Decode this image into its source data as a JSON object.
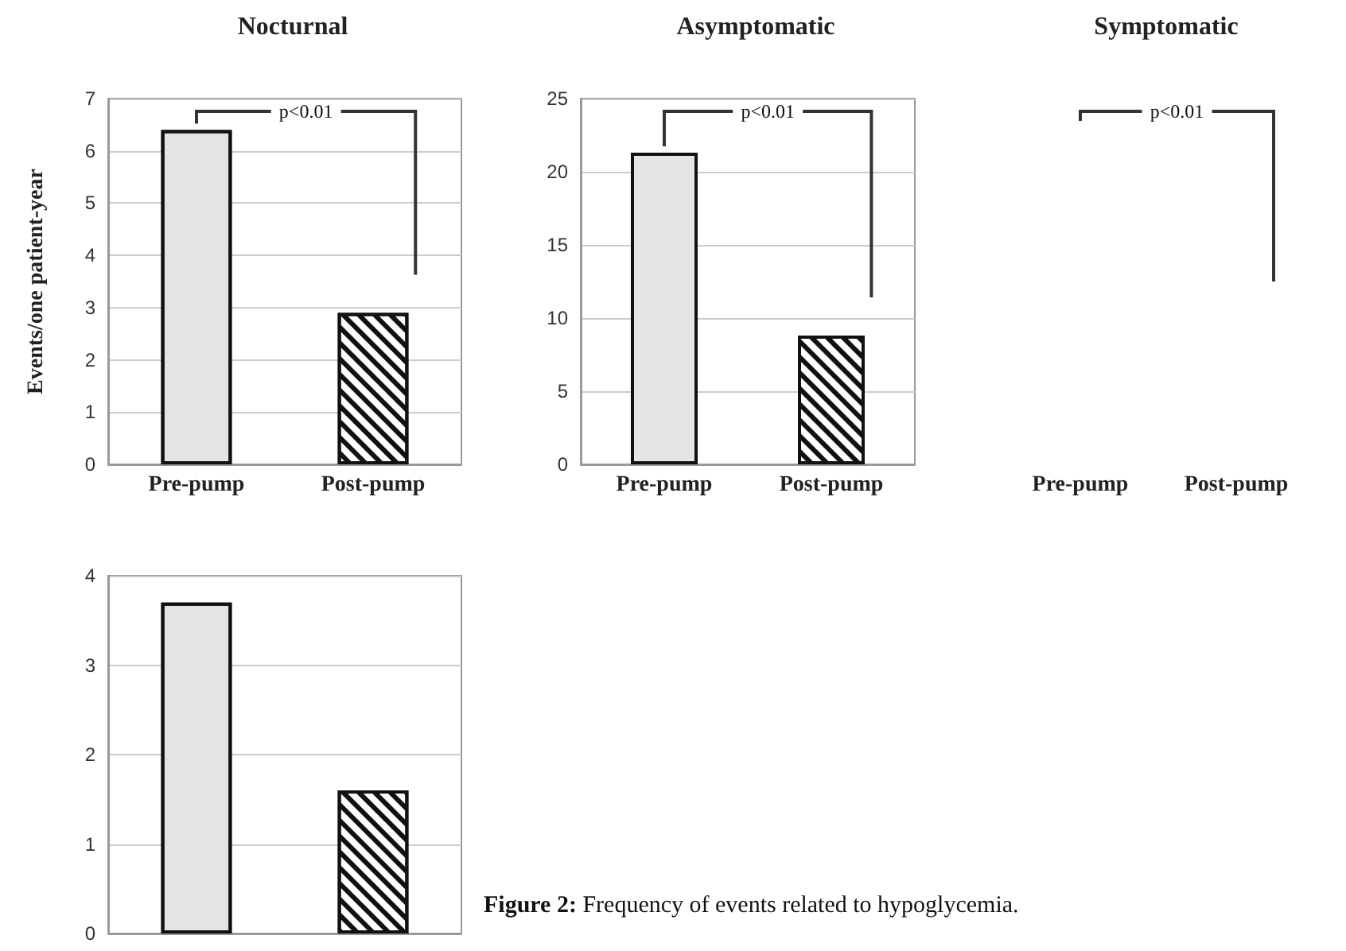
{
  "chart_data": [
    {
      "type": "bar",
      "title": "Nocturnal",
      "ylabel": "Events/one patient-year",
      "categories": [
        "Pre-pump",
        "Post-pump"
      ],
      "values": [
        6.4,
        2.9
      ],
      "colors": [
        "#e4e4e4",
        "#ffffff"
      ],
      "ylim": [
        0,
        7
      ],
      "yticks": [
        0,
        1,
        2,
        3,
        4,
        5,
        6,
        7
      ],
      "grid": "y",
      "annotations": [
        "p<0.01"
      ]
    },
    {
      "type": "bar",
      "title": "Asymptomatic",
      "categories": [
        "Pre-pump",
        "Post-pump"
      ],
      "values": [
        21.3,
        8.8
      ],
      "colors": [
        "#e4e4e4",
        "#ffffff"
      ],
      "ylim": [
        0,
        25
      ],
      "yticks": [
        0,
        5,
        10,
        15,
        20,
        25
      ],
      "grid": "y",
      "annotations": [
        "p<0.01"
      ]
    },
    {
      "type": "other",
      "title": "Symptomatic",
      "categories": [
        "Pre-pump",
        "Post-pump"
      ],
      "annotations": [
        "p<0.01"
      ]
    },
    {
      "type": "bar",
      "categories": [
        null,
        null
      ],
      "values": [
        3.7,
        1.6
      ],
      "colors": [
        "#e4e4e4",
        "#ffffff"
      ],
      "ylim": [
        0,
        4
      ],
      "yticks": [
        0,
        1,
        2,
        3,
        4
      ],
      "grid": "y",
      "annotations": [
        "Figure 2: Frequency of events related to hypoglycemia."
      ]
    }
  ]
}
